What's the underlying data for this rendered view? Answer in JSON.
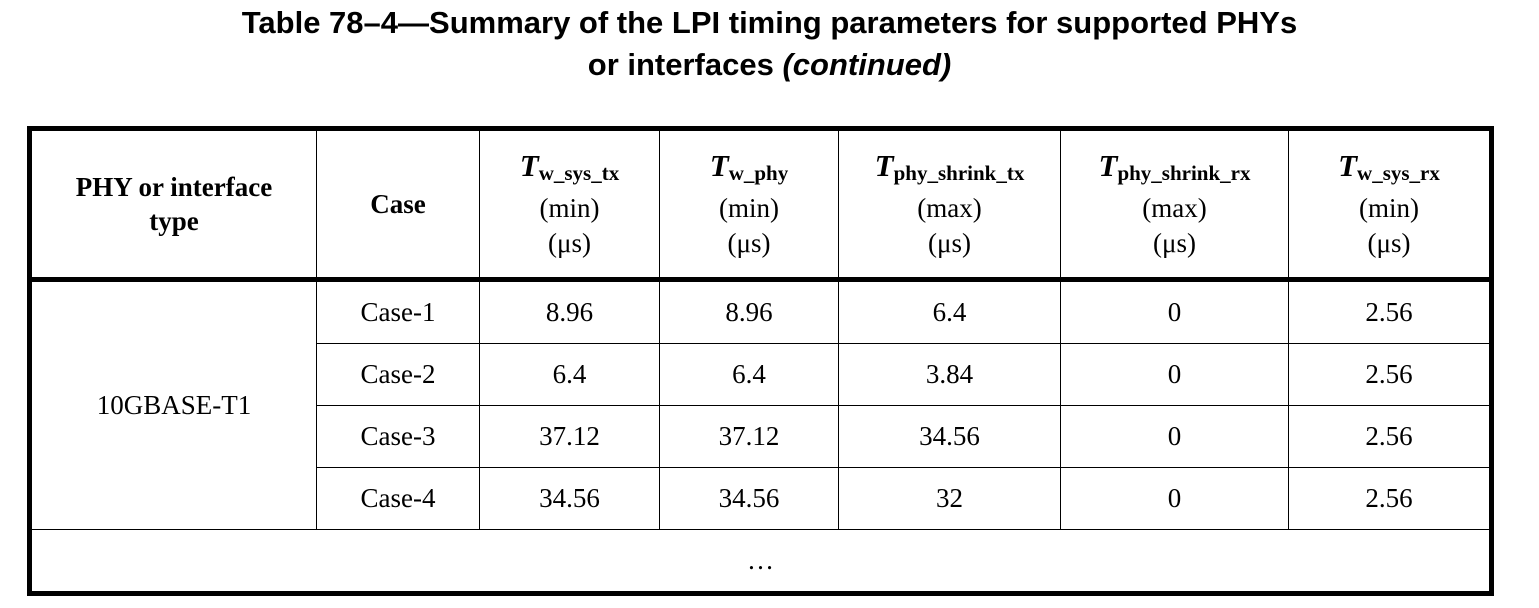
{
  "caption": {
    "line1": "Table 78–4—Summary of the LPI timing parameters for supported PHYs",
    "line2": "or interfaces ",
    "continued": "(continued)"
  },
  "headers": {
    "phy": "PHY or interface type",
    "case": "Case",
    "cols": [
      {
        "sym": "T",
        "sub": "w_sys_tx",
        "minmax": "(min)",
        "unit": "(μs)"
      },
      {
        "sym": "T",
        "sub": "w_phy",
        "minmax": "(min)",
        "unit": "(μs)"
      },
      {
        "sym": "T",
        "sub": "phy_shrink_tx",
        "minmax": "(max)",
        "unit": "(μs)"
      },
      {
        "sym": "T",
        "sub": "phy_shrink_rx",
        "minmax": "(max)",
        "unit": "(μs)"
      },
      {
        "sym": "T",
        "sub": "w_sys_rx",
        "minmax": "(min)",
        "unit": "(μs)"
      }
    ]
  },
  "phy_type": "10GBASE-T1",
  "rows": [
    {
      "case": "Case-1",
      "values": [
        "8.96",
        "8.96",
        "6.4",
        "0",
        "2.56"
      ]
    },
    {
      "case": "Case-2",
      "values": [
        "6.4",
        "6.4",
        "3.84",
        "0",
        "2.56"
      ]
    },
    {
      "case": "Case-3",
      "values": [
        "37.12",
        "37.12",
        "34.56",
        "0",
        "2.56"
      ]
    },
    {
      "case": "Case-4",
      "values": [
        "34.56",
        "34.56",
        "32",
        "0",
        "2.56"
      ]
    }
  ],
  "ellipsis": "…"
}
